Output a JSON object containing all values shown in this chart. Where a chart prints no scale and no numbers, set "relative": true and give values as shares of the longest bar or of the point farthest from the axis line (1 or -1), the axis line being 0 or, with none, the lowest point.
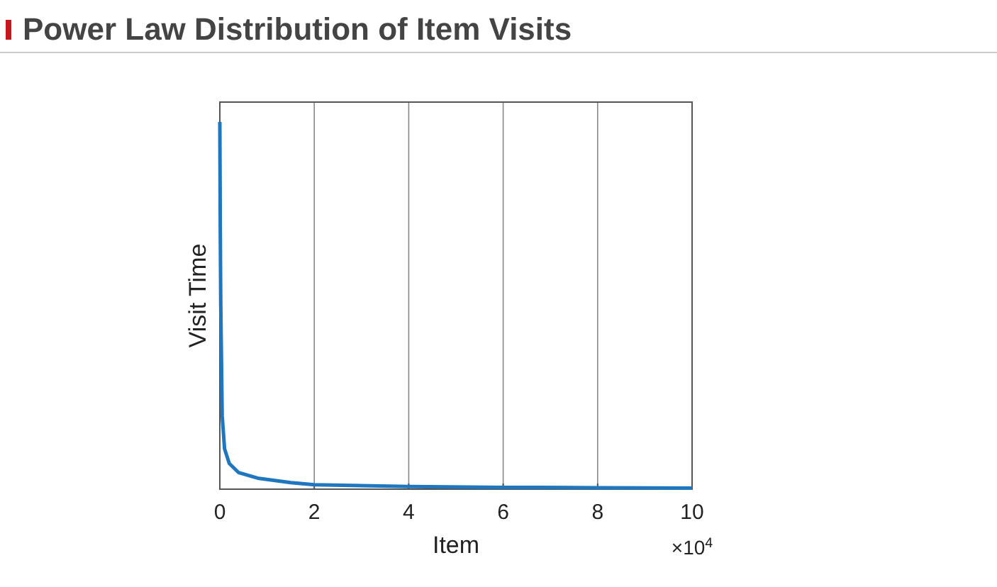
{
  "chart_data": {
    "type": "line",
    "title": "Power Law Distribution of Item Visits",
    "xlabel": "Item",
    "ylabel": "Visit Time",
    "relative": true,
    "x": [
      0,
      0.01,
      0.02,
      0.05,
      0.1,
      0.2,
      0.4,
      0.8,
      1.5,
      2,
      4,
      6,
      8,
      10
    ],
    "series": [
      {
        "color": "#1f77c0",
        "values": [
          1,
          0.7,
          0.5,
          0.2,
          0.11,
          0.07,
          0.045,
          0.03,
          0.018,
          0.012,
          0.007,
          0.005,
          0.004,
          0.003
        ]
      }
    ],
    "xlim": [
      0,
      10
    ],
    "xticks": [
      0,
      2,
      4,
      6,
      8,
      10
    ],
    "annotations": [
      "×10$^{4}$"
    ],
    "grid": "x",
    "marker": "none",
    "line_style": "solid"
  }
}
